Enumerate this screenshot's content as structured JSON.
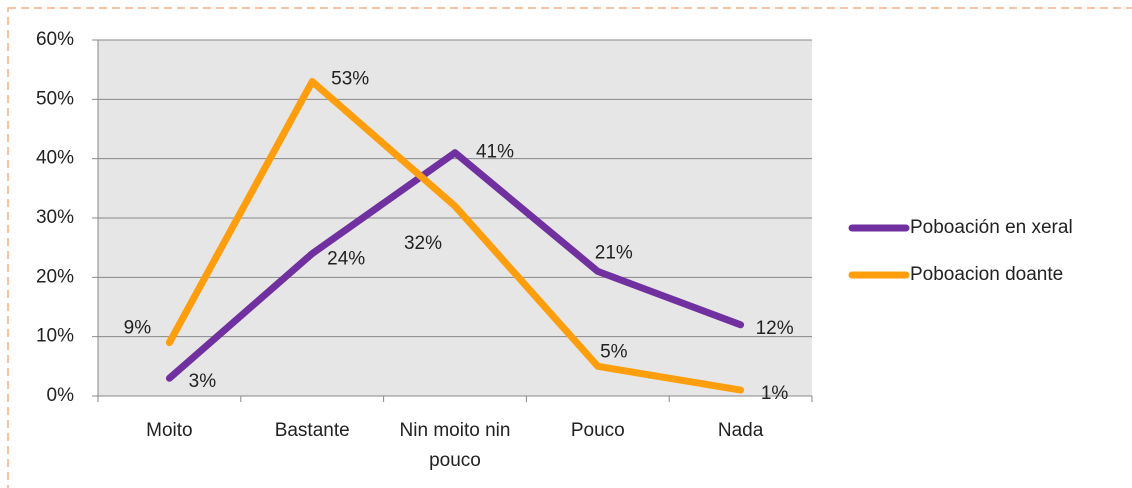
{
  "chart_data": {
    "type": "line",
    "categories": [
      "Moito",
      "Bastante",
      "Nin moito nin pouco",
      "Pouco",
      "Nada"
    ],
    "series": [
      {
        "name": "Poboación en xeral",
        "color": "#7030a0",
        "values": [
          3,
          24,
          41,
          21,
          12
        ],
        "value_labels": [
          "3%",
          "24%",
          "41%",
          "21%",
          "12%"
        ]
      },
      {
        "name": "Poboacion doante",
        "color": "#ff9e0d",
        "values": [
          9,
          53,
          32,
          5,
          1
        ],
        "value_labels": [
          "9%",
          "53%",
          "32%",
          "5%",
          "1%"
        ]
      }
    ],
    "ylim": [
      0,
      60
    ],
    "yticks": [
      {
        "value": 0,
        "label": "0%"
      },
      {
        "value": 10,
        "label": "10%"
      },
      {
        "value": 20,
        "label": "20%"
      },
      {
        "value": 30,
        "label": "30%"
      },
      {
        "value": 40,
        "label": "40%"
      },
      {
        "value": 50,
        "label": "50%"
      },
      {
        "value": 60,
        "label": "60%"
      }
    ],
    "grid": true,
    "legend": "right"
  }
}
